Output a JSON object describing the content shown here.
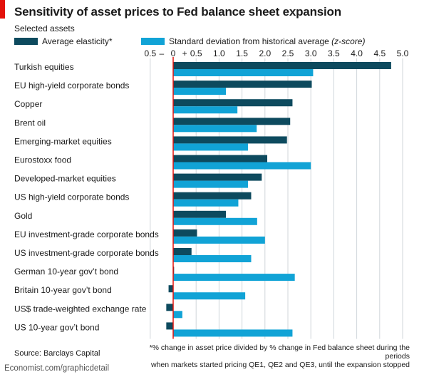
{
  "header": {
    "title": "Sensitivity of asset prices to Fed balance sheet expansion",
    "subtitle": "Selected assets"
  },
  "legend": {
    "series_1": "Average elasticity*",
    "series_2_text": "Standard deviation from historical average",
    "series_2_paren": "(z-score)"
  },
  "footer": {
    "footnote_line_1": "*% change in asset price divided by % change in Fed balance sheet during the periods",
    "footnote_line_2": "when markets started pricing QE1, QE2 and QE3, until the expansion stopped",
    "source": "Source: Barclays Capital",
    "credit": "Economist.com/graphicdetail"
  },
  "colors": {
    "series_1": "#0d4a5e",
    "series_2": "#11a3d6",
    "zero_line": "#e3120b",
    "grid": "#d0d6da",
    "accent": "#e3120b"
  },
  "chart_data": {
    "type": "bar",
    "orientation": "horizontal",
    "title": "Sensitivity of asset prices to Fed balance sheet expansion",
    "subtitle": "Selected assets",
    "xlim": [
      -0.5,
      5.0
    ],
    "x_ticks": [
      -0.5,
      0,
      0.5,
      1.0,
      1.5,
      2.0,
      2.5,
      3.0,
      3.5,
      4.0,
      4.5,
      5.0
    ],
    "x_tick_labels": [
      "0.5",
      "0",
      "0.5",
      "1.0",
      "1.5",
      "2.0",
      "2.5",
      "3.0",
      "3.5",
      "4.0",
      "4.5",
      "5.0"
    ],
    "minus_sign": "–",
    "plus_sign": "+",
    "grid": true,
    "legend_position": "top-left",
    "categories": [
      "Turkish equities",
      "EU high-yield corporate bonds",
      "Copper",
      "Brent oil",
      "Emerging-market equities",
      "Eurostoxx food",
      "Developed-market equities",
      "US high-yield corporate bonds",
      "Gold",
      "EU investment-grade corporate bonds",
      "US investment-grade corporate bonds",
      "German 10-year gov’t bond",
      "Britain 10-year gov’t bond",
      "US$ trade-weighted exchange rate",
      "US 10-year gov’t bond"
    ],
    "series": [
      {
        "name": "Average elasticity*",
        "values": [
          4.75,
          3.02,
          2.6,
          2.55,
          2.48,
          2.05,
          1.93,
          1.7,
          1.15,
          0.52,
          0.4,
          0.02,
          -0.1,
          -0.15,
          -0.15
        ]
      },
      {
        "name": "Standard deviation from historical average (z-score)",
        "values": [
          3.05,
          1.15,
          1.4,
          1.82,
          1.63,
          3.0,
          1.63,
          1.42,
          1.83,
          2.0,
          1.7,
          2.65,
          1.57,
          0.2,
          2.6
        ]
      }
    ]
  }
}
